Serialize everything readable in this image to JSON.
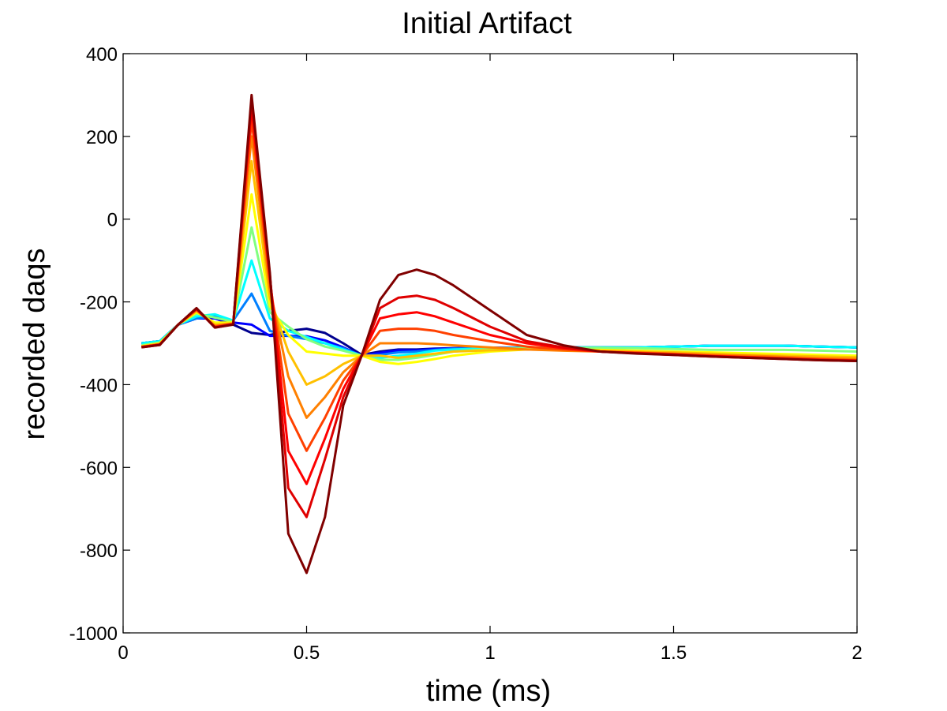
{
  "chart_data": {
    "type": "line",
    "title": "Initial Artifact",
    "xlabel": "time (ms)",
    "ylabel": "recorded daqs",
    "xlim": [
      0,
      2
    ],
    "ylim": [
      -1000,
      400
    ],
    "xticks": [
      0,
      0.5,
      1,
      1.5,
      2
    ],
    "xtick_labels": [
      "0",
      "0.5",
      "1",
      "1.5",
      "2"
    ],
    "yticks": [
      400,
      200,
      0,
      -200,
      -400,
      -600,
      -800,
      -1000
    ],
    "ytick_labels": [
      "400",
      "200",
      "0",
      "-200",
      "-400",
      "-600",
      "-800",
      "-1000"
    ],
    "grid": false,
    "legend": "none",
    "colormap": "jet",
    "x": [
      0.05,
      0.1,
      0.15,
      0.2,
      0.25,
      0.3,
      0.35,
      0.4,
      0.45,
      0.5,
      0.55,
      0.6,
      0.65,
      0.7,
      0.75,
      0.8,
      0.85,
      0.9,
      1.0,
      1.1,
      1.2,
      1.3,
      1.4,
      1.5,
      1.6,
      1.7,
      1.8,
      1.9,
      2.0
    ],
    "series": [
      {
        "color": "#00008f",
        "values": [
          -300,
          -295,
          -255,
          -240,
          -240,
          -255,
          -275,
          -280,
          -270,
          -265,
          -275,
          -300,
          -328,
          -320,
          -315,
          -315,
          -313,
          -312,
          -311,
          -311,
          -310,
          -310,
          -310,
          -308,
          -306,
          -306,
          -306,
          -308,
          -310
        ]
      },
      {
        "color": "#0000ff",
        "values": [
          -300,
          -295,
          -255,
          -240,
          -240,
          -250,
          -255,
          -282,
          -282,
          -283,
          -293,
          -310,
          -330,
          -323,
          -317,
          -317,
          -314,
          -312,
          -311,
          -311,
          -310,
          -310,
          -310,
          -308,
          -306,
          -306,
          -306,
          -308,
          -310
        ]
      },
      {
        "color": "#0080ff",
        "values": [
          -300,
          -295,
          -255,
          -240,
          -235,
          -245,
          -180,
          -270,
          -282,
          -290,
          -300,
          -312,
          -330,
          -328,
          -322,
          -320,
          -316,
          -313,
          -312,
          -311,
          -310,
          -310,
          -310,
          -308,
          -306,
          -306,
          -306,
          -308,
          -310
        ]
      },
      {
        "color": "#00ffff",
        "values": [
          -300,
          -295,
          -255,
          -235,
          -230,
          -245,
          -100,
          -240,
          -270,
          -285,
          -300,
          -315,
          -330,
          -335,
          -330,
          -325,
          -318,
          -315,
          -312,
          -311,
          -310,
          -310,
          -310,
          -308,
          -306,
          -306,
          -306,
          -308,
          -310
        ]
      },
      {
        "color": "#80ff80",
        "values": [
          -305,
          -298,
          -255,
          -228,
          -238,
          -248,
          -20,
          -225,
          -260,
          -290,
          -308,
          -318,
          -330,
          -340,
          -340,
          -335,
          -328,
          -320,
          -314,
          -312,
          -311,
          -311,
          -312,
          -314,
          -316,
          -316,
          -316,
          -318,
          -320
        ]
      },
      {
        "color": "#ffff00",
        "values": [
          -307,
          -300,
          -255,
          -225,
          -250,
          -250,
          60,
          -210,
          -280,
          -320,
          -325,
          -330,
          -330,
          -345,
          -350,
          -345,
          -338,
          -330,
          -320,
          -315,
          -315,
          -316,
          -318,
          -320,
          -322,
          -324,
          -326,
          -328,
          -330
        ]
      },
      {
        "color": "#ffc000",
        "values": [
          -308,
          -302,
          -255,
          -222,
          -255,
          -252,
          140,
          -190,
          -320,
          -400,
          -380,
          -350,
          -330,
          -330,
          -335,
          -330,
          -325,
          -320,
          -317,
          -315,
          -316,
          -318,
          -320,
          -322,
          -325,
          -328,
          -330,
          -332,
          -334
        ]
      },
      {
        "color": "#ff8000",
        "values": [
          -308,
          -302,
          -255,
          -220,
          -258,
          -252,
          200,
          -170,
          -380,
          -480,
          -430,
          -370,
          -330,
          -300,
          -300,
          -300,
          -302,
          -305,
          -310,
          -315,
          -318,
          -320,
          -322,
          -325,
          -328,
          -330,
          -333,
          -336,
          -338
        ]
      },
      {
        "color": "#ff4000",
        "values": [
          -309,
          -303,
          -255,
          -218,
          -260,
          -253,
          240,
          -150,
          -470,
          -560,
          -480,
          -390,
          -330,
          -270,
          -265,
          -265,
          -270,
          -280,
          -295,
          -308,
          -315,
          -320,
          -323,
          -326,
          -330,
          -333,
          -336,
          -339,
          -341
        ]
      },
      {
        "color": "#ff0000",
        "values": [
          -309,
          -303,
          -255,
          -217,
          -261,
          -254,
          270,
          -140,
          -560,
          -640,
          -530,
          -410,
          -330,
          -240,
          -230,
          -225,
          -235,
          -250,
          -280,
          -300,
          -312,
          -320,
          -324,
          -327,
          -331,
          -334,
          -337,
          -340,
          -342
        ]
      },
      {
        "color": "#df0000",
        "values": [
          -310,
          -304,
          -255,
          -216,
          -262,
          -254,
          285,
          -135,
          -650,
          -720,
          -580,
          -430,
          -330,
          -215,
          -190,
          -185,
          -195,
          -215,
          -260,
          -295,
          -310,
          -320,
          -324,
          -328,
          -332,
          -335,
          -338,
          -341,
          -343
        ]
      },
      {
        "color": "#800000",
        "values": [
          -310,
          -304,
          -255,
          -215,
          -262,
          -255,
          300,
          -130,
          -760,
          -855,
          -720,
          -450,
          -330,
          -195,
          -135,
          -122,
          -135,
          -160,
          -220,
          -280,
          -305,
          -320,
          -325,
          -328,
          -332,
          -335,
          -338,
          -341,
          -343
        ]
      }
    ]
  }
}
